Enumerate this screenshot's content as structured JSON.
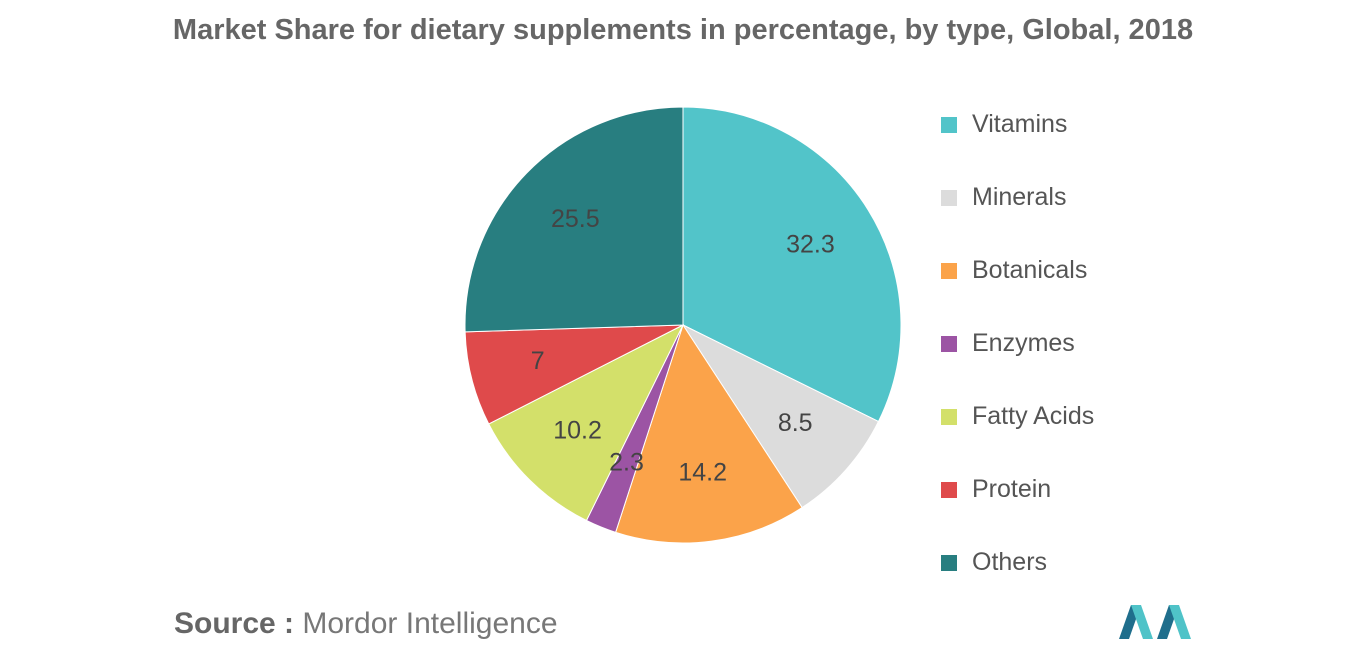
{
  "chart_data": {
    "type": "pie",
    "title": "Market Share for dietary supplements in percentage, by type, Global, 2018",
    "slices": [
      {
        "label": "Vitamins",
        "value": 32.3,
        "display": "32.3",
        "color": "#52c4c9"
      },
      {
        "label": "Minerals",
        "value": 8.5,
        "display": "8.5",
        "color": "#dcdcdc"
      },
      {
        "label": "Botanicals",
        "value": 14.2,
        "display": "14.2",
        "color": "#fba34a"
      },
      {
        "label": "Enzymes",
        "value": 2.3,
        "display": "2.3",
        "color": "#9c54a4"
      },
      {
        "label": "Fatty Acids",
        "value": 10.2,
        "display": "10.2",
        "color": "#d3e06a"
      },
      {
        "label": "Protein",
        "value": 7,
        "display": "7",
        "color": "#df4a4b"
      },
      {
        "label": "Others",
        "value": 25.5,
        "display": "25.5",
        "color": "#287e80"
      }
    ],
    "legend_position": "right"
  },
  "source": {
    "prefix": "Source :",
    "name": "Mordor Intelligence"
  },
  "logo_colors": {
    "dark": "#1f6e8c",
    "light": "#4fc3c8"
  }
}
